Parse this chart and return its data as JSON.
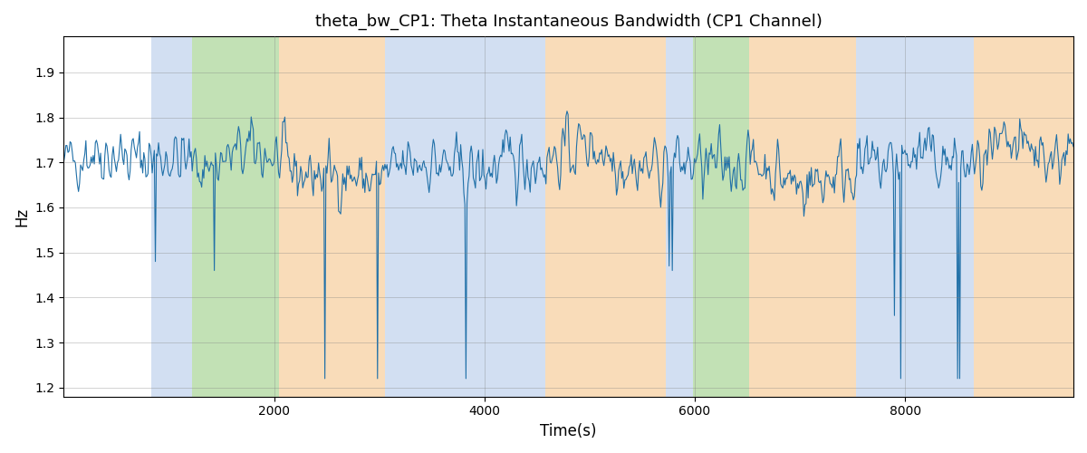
{
  "title": "theta_bw_CP1: Theta Instantaneous Bandwidth (CP1 Channel)",
  "xlabel": "Time(s)",
  "ylabel": "Hz",
  "xlim": [
    0,
    9600
  ],
  "ylim": [
    1.18,
    1.98
  ],
  "yticks": [
    1.2,
    1.3,
    1.4,
    1.5,
    1.6,
    1.7,
    1.8,
    1.9
  ],
  "xticks": [
    2000,
    4000,
    6000,
    8000
  ],
  "line_color": "#2070a8",
  "line_width": 0.8,
  "grid_color": "gray",
  "grid_alpha": 0.4,
  "grid_linewidth": 0.6,
  "background_color": "#ffffff",
  "seed": 42,
  "n_points": 960,
  "t_max": 9600,
  "signal_mean": 1.695,
  "signal_std": 0.058,
  "colored_bands": [
    {
      "xmin": 830,
      "xmax": 1220,
      "color": "#aec6e8",
      "alpha": 0.55
    },
    {
      "xmin": 1220,
      "xmax": 2050,
      "color": "#90c978",
      "alpha": 0.55
    },
    {
      "xmin": 2050,
      "xmax": 3050,
      "color": "#f5c080",
      "alpha": 0.55
    },
    {
      "xmin": 3050,
      "xmax": 4580,
      "color": "#aec6e8",
      "alpha": 0.55
    },
    {
      "xmin": 4580,
      "xmax": 5720,
      "color": "#f5c080",
      "alpha": 0.55
    },
    {
      "xmin": 5720,
      "xmax": 5980,
      "color": "#aec6e8",
      "alpha": 0.55
    },
    {
      "xmin": 5980,
      "xmax": 6520,
      "color": "#90c978",
      "alpha": 0.55
    },
    {
      "xmin": 6520,
      "xmax": 7530,
      "color": "#f5c080",
      "alpha": 0.55
    },
    {
      "xmin": 7530,
      "xmax": 8650,
      "color": "#aec6e8",
      "alpha": 0.55
    },
    {
      "xmin": 8650,
      "xmax": 9700,
      "color": "#f5c080",
      "alpha": 0.55
    }
  ],
  "spike_positions_idx": [
    87,
    143,
    248,
    298,
    382,
    575,
    578,
    789,
    795,
    849,
    851
  ],
  "spike_values": [
    1.48,
    1.46,
    1.22,
    1.22,
    1.22,
    1.47,
    1.46,
    1.36,
    1.22,
    1.22,
    1.22
  ]
}
